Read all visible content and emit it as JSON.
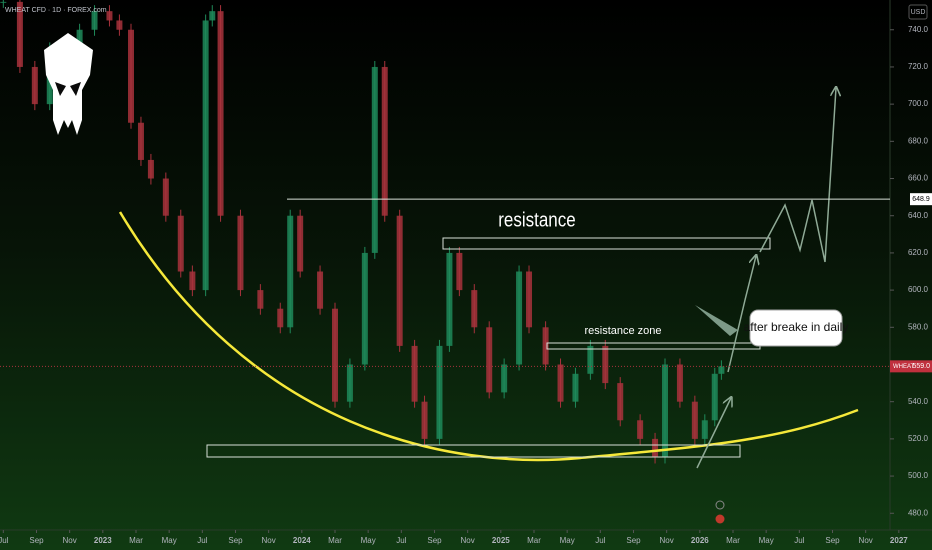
{
  "chart_data": {
    "type": "candlestick",
    "title": "WHEAT CFD · 1D · FOREX.com",
    "currency": "USD",
    "x": [
      0,
      1,
      1.9,
      2.8,
      3.7,
      4.6,
      5.5,
      6.4,
      7,
      7.7,
      8.3,
      8.9,
      9.8,
      10.7,
      11.4,
      12.2,
      12.6,
      13.1,
      14.3,
      15.5,
      16.7,
      17.3,
      17.9,
      19.1,
      20,
      20.9,
      21.8,
      22.4,
      23,
      23.9,
      24.8,
      25.4,
      26.3,
      26.9,
      27.5,
      28.4,
      29.3,
      30.2,
      31.1,
      31.7,
      32.7,
      33.6,
      34.5,
      35.4,
      36.3,
      37.2,
      38.4,
      39.3,
      39.9,
      40.8,
      41.7,
      42.3,
      42.9,
      43.3
    ],
    "values": [
      755,
      720,
      700,
      730,
      710,
      740,
      750,
      745,
      740,
      690,
      670,
      660,
      640,
      610,
      600,
      745,
      750,
      640,
      600,
      590,
      580,
      640,
      610,
      590,
      540,
      560,
      620,
      720,
      640,
      570,
      540,
      520,
      570,
      620,
      600,
      580,
      545,
      560,
      610,
      580,
      560,
      540,
      555,
      570,
      550,
      530,
      520,
      510,
      560,
      540,
      520,
      530,
      555,
      559
    ],
    "up_color": "#1f8a5a",
    "down_color": "#a8323c",
    "xlim": [
      -0.2,
      56
    ],
    "ylim": [
      471,
      756
    ],
    "xticks": [
      {
        "value": 0,
        "label": "Jul"
      },
      {
        "value": 2,
        "label": "Sep"
      },
      {
        "value": 4,
        "label": "Nov"
      },
      {
        "value": 6,
        "label": "2023"
      },
      {
        "value": 8,
        "label": "Mar"
      },
      {
        "value": 10,
        "label": "May"
      },
      {
        "value": 12,
        "label": "Jul"
      },
      {
        "value": 14,
        "label": "Sep"
      },
      {
        "value": 16,
        "label": "Nov"
      },
      {
        "value": 18,
        "label": "2024"
      },
      {
        "value": 20,
        "label": "Mar"
      },
      {
        "value": 22,
        "label": "May"
      },
      {
        "value": 24,
        "label": "Jul"
      },
      {
        "value": 26,
        "label": "Sep"
      },
      {
        "value": 28,
        "label": "Nov"
      },
      {
        "value": 30,
        "label": "2025"
      },
      {
        "value": 32,
        "label": "Mar"
      },
      {
        "value": 34,
        "label": "May"
      },
      {
        "value": 36,
        "label": "Jul"
      },
      {
        "value": 38,
        "label": "Sep"
      },
      {
        "value": 40,
        "label": "Nov"
      },
      {
        "value": 42,
        "label": "2026"
      },
      {
        "value": 44,
        "label": "Mar"
      },
      {
        "value": 46,
        "label": "May"
      },
      {
        "value": 48,
        "label": "Jul"
      },
      {
        "value": 50,
        "label": "Sep"
      },
      {
        "value": 52,
        "label": "Nov"
      },
      {
        "value": 54,
        "label": "2027"
      }
    ],
    "yticks": [
      {
        "value": 480,
        "label": "480.0"
      },
      {
        "value": 500,
        "label": "500.0"
      },
      {
        "value": 520,
        "label": "520.0"
      },
      {
        "value": 540,
        "label": "540.0"
      },
      {
        "value": 580,
        "label": "580.0"
      },
      {
        "value": 600,
        "label": "600.0"
      },
      {
        "value": 620,
        "label": "620.0"
      },
      {
        "value": 640,
        "label": "640.0"
      },
      {
        "value": 660,
        "label": "660.0"
      },
      {
        "value": 680,
        "label": "680.0"
      },
      {
        "value": 700,
        "label": "700.0"
      },
      {
        "value": 720,
        "label": "720.0"
      },
      {
        "value": 740,
        "label": "740.0"
      }
    ],
    "price_line": {
      "value": 648.9
    },
    "last_price": {
      "name": "WHEAT",
      "value": 559,
      "value_label": "559.0"
    },
    "annotations": {
      "resistance": "resistance",
      "resistance_zone": "resistance zone",
      "callout": "after breake in daily"
    }
  }
}
